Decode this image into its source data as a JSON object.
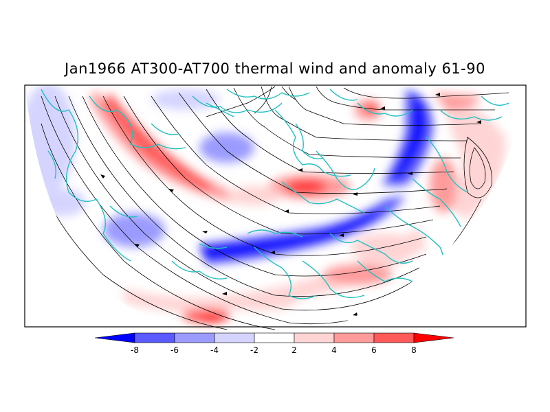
{
  "title": "Jan1966 AT300-AT700 thermal wind and anomaly 61-90",
  "colorbar": {
    "ticks": [
      "-8",
      "-6",
      "-4",
      "-2",
      "2",
      "4",
      "6",
      "8"
    ],
    "bins": [
      {
        "range": "< -8",
        "color": "#0000ff"
      },
      {
        "range": "-8 to -6",
        "color": "#5a5aff"
      },
      {
        "range": "-6 to -4",
        "color": "#9b9bff"
      },
      {
        "range": "-4 to -2",
        "color": "#d4d4ff"
      },
      {
        "range": "-2 to 2",
        "color": "#ffffff"
      },
      {
        "range": "2 to 4",
        "color": "#ffd4d4"
      },
      {
        "range": "4 to 6",
        "color": "#ff9b9b"
      },
      {
        "range": "6 to 8",
        "color": "#ff5a5a"
      },
      {
        "range": "> 8",
        "color": "#ff0000"
      }
    ]
  },
  "colors": {
    "coastline": "#20c0c0",
    "streamline": "#000000",
    "frame": "#000000"
  }
}
